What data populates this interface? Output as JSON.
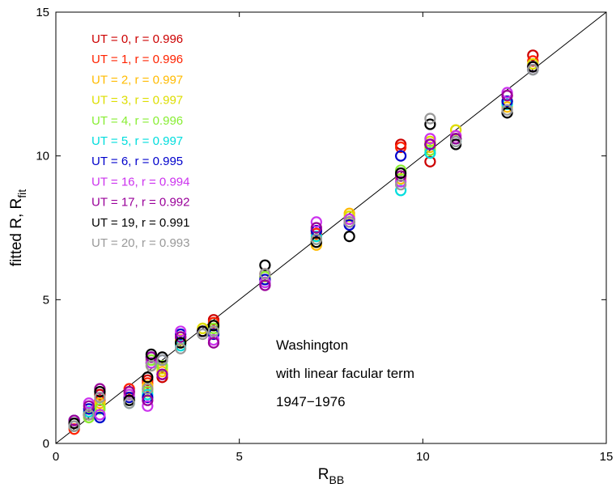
{
  "chart_data": {
    "type": "scatter",
    "title": "",
    "xlabel": "R",
    "xlabel_sub": "BB",
    "ylabel": "fitted R, R",
    "ylabel_sub": "fit",
    "xlim": [
      0,
      15
    ],
    "ylim": [
      0,
      15
    ],
    "xticks": [
      "0",
      "5",
      "10",
      "15"
    ],
    "yticks": [
      "0",
      "5",
      "10",
      "15"
    ],
    "grid": false,
    "legend_position": "top-left",
    "reference_line": {
      "label": "y = x"
    },
    "annotations": [
      "Washington",
      "with linear facular term",
      "1947−1976"
    ],
    "x_groups": [
      0.5,
      0.9,
      1.2,
      2.0,
      2.5,
      2.6,
      2.9,
      3.4,
      4.0,
      4.3,
      5.7,
      7.1,
      8.0,
      9.4,
      10.2,
      10.9,
      12.3,
      13.0
    ],
    "series": [
      {
        "name": "UT = 0, r = 0.996",
        "color": "#cc0000",
        "marker": "circle",
        "y": [
          0.6,
          1.0,
          1.7,
          1.8,
          2.2,
          2.9,
          2.3,
          3.7,
          3.9,
          4.3,
          5.8,
          7.4,
          7.7,
          10.4,
          9.8,
          10.6,
          12.1,
          13.5
        ]
      },
      {
        "name": "UT = 1, r = 0.996",
        "color": "#ff2200",
        "marker": "circle",
        "y": [
          0.5,
          1.1,
          1.5,
          1.9,
          2.1,
          2.8,
          2.4,
          3.6,
          3.9,
          4.2,
          5.9,
          7.3,
          7.8,
          10.3,
          10.4,
          10.7,
          11.9,
          13.3
        ]
      },
      {
        "name": "UT = 2, r = 0.997",
        "color": "#ffbb00",
        "marker": "circle",
        "y": [
          0.6,
          0.9,
          1.4,
          1.6,
          2.0,
          2.7,
          2.5,
          3.5,
          4.0,
          4.1,
          5.6,
          6.9,
          8.0,
          9.2,
          10.3,
          10.9,
          11.7,
          13.1
        ]
      },
      {
        "name": "UT = 3, r = 0.997",
        "color": "#dddd00",
        "marker": "circle",
        "y": [
          0.7,
          1.0,
          1.3,
          1.7,
          1.9,
          2.8,
          2.6,
          3.6,
          4.0,
          4.0,
          5.7,
          7.0,
          7.9,
          9.3,
          10.5,
          10.9,
          11.8,
          13.2
        ]
      },
      {
        "name": "UT = 4, r = 0.996",
        "color": "#88ee33",
        "marker": "circle",
        "y": [
          0.7,
          0.9,
          1.2,
          1.5,
          1.8,
          2.9,
          2.7,
          3.5,
          3.9,
          4.0,
          5.8,
          7.1,
          7.8,
          9.5,
          10.2,
          10.6,
          11.9,
          13.0
        ]
      },
      {
        "name": "UT = 5, r = 0.997",
        "color": "#00dddd",
        "marker": "circle",
        "y": [
          0.6,
          1.1,
          0.9,
          1.4,
          1.7,
          2.8,
          2.9,
          3.4,
          3.9,
          3.9,
          5.6,
          7.2,
          7.7,
          8.8,
          10.1,
          10.5,
          11.8,
          13.1
        ]
      },
      {
        "name": "UT = 6, r = 0.995",
        "color": "#0000cc",
        "marker": "circle",
        "y": [
          0.8,
          1.2,
          0.9,
          1.6,
          1.6,
          3.0,
          2.9,
          3.8,
          3.9,
          3.8,
          5.7,
          7.4,
          7.6,
          10.0,
          10.4,
          10.6,
          11.9,
          13.0
        ]
      },
      {
        "name": "UT = 16, r = 0.994",
        "color": "#cc33ee",
        "marker": "circle",
        "y": [
          0.7,
          1.4,
          1.0,
          1.7,
          1.3,
          2.8,
          2.4,
          3.9,
          3.9,
          3.6,
          5.6,
          7.7,
          7.8,
          9.1,
          10.6,
          10.7,
          12.2,
          13.1
        ]
      },
      {
        "name": "UT = 17, r = 0.992",
        "color": "#990099",
        "marker": "circle",
        "y": [
          0.8,
          1.3,
          1.9,
          1.8,
          1.5,
          3.0,
          2.4,
          3.7,
          3.9,
          3.5,
          5.5,
          7.5,
          7.7,
          9.3,
          10.4,
          10.6,
          12.1,
          13.1
        ]
      },
      {
        "name": "UT = 19, r = 0.991",
        "color": "#000000",
        "marker": "circle",
        "y": [
          0.7,
          1.0,
          1.8,
          1.5,
          2.3,
          3.1,
          3.0,
          3.5,
          3.9,
          4.1,
          6.2,
          7.0,
          7.2,
          9.4,
          11.1,
          10.4,
          11.5,
          13.1
        ]
      },
      {
        "name": "UT = 20, r = 0.993",
        "color": "#999999",
        "marker": "circle",
        "y": [
          0.6,
          1.0,
          1.6,
          1.4,
          1.9,
          2.7,
          2.9,
          3.3,
          3.8,
          3.9,
          5.9,
          7.1,
          7.7,
          9.0,
          11.3,
          10.5,
          11.6,
          13.0
        ]
      }
    ]
  }
}
